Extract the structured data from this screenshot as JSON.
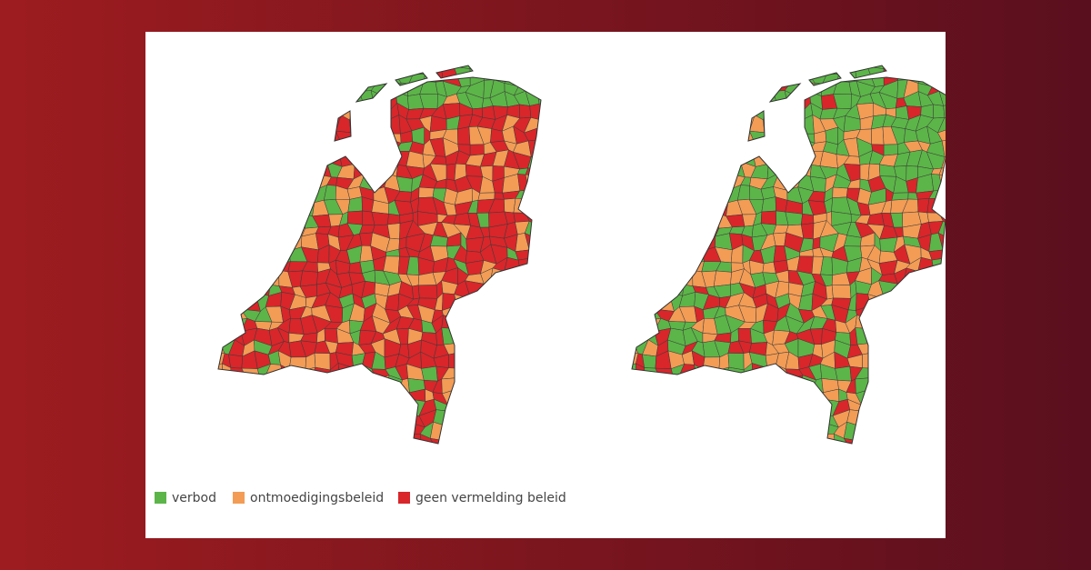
{
  "legend": {
    "items": [
      {
        "label": "verbod",
        "color": "#5cb548"
      },
      {
        "label": "ontmoedigingsbeleid",
        "color": "#f39c55"
      },
      {
        "label": "geen vermelding beleid",
        "color": "#d8262a"
      }
    ]
  }
}
